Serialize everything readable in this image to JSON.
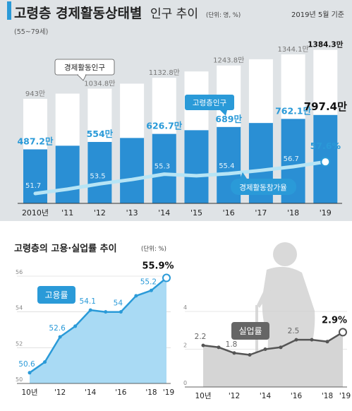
{
  "header": {
    "title": "고령층 경제활동상태별",
    "title2": "인구 추이",
    "unit": "(단위: 명, %)",
    "age_range": "(55~79세)",
    "date": "2019년 5월 기준"
  },
  "colors": {
    "top_bg": "#dfe3e6",
    "bar": "#2a8fd4",
    "bar_white": "#ffffff",
    "accent_blue": "#2a9ad8",
    "line_light": "#b6e4f5",
    "employment_fill": "#a9daf4",
    "unemployment_fill": "#d5d5d5",
    "dark": "#222222",
    "grid": "#cfcfcf"
  },
  "chart_data": [
    {
      "type": "bar",
      "categories": [
        "2010년",
        "'11",
        "'12",
        "'13",
        "'14",
        "'15",
        "'16",
        "'17",
        "'18",
        "'19"
      ],
      "series": [
        {
          "name": "경제활동인구",
          "values": [
            943,
            990,
            1034.8,
            1080,
            1132.8,
            1190,
            1243.8,
            1300,
            1344.1,
            1384.3
          ]
        },
        {
          "name": "고령층인구",
          "values": [
            487.2,
            520,
            554,
            590,
            626.7,
            660,
            689,
            725,
            762.1,
            797.4
          ]
        },
        {
          "name": "경제활동참가율",
          "values": [
            51.7,
            52.5,
            53.5,
            54.3,
            55.3,
            55.0,
            55.4,
            56.0,
            56.7,
            57.6
          ]
        }
      ],
      "total_labels": [
        "943만",
        "",
        "1034.8만",
        "",
        "1132.8만",
        "",
        "1243.8만",
        "",
        "1344.1만",
        "1384.3만"
      ],
      "part_labels": [
        "487.2만",
        "",
        "554만",
        "",
        "626.7만",
        "",
        "689만",
        "",
        "762.1만",
        "797.4만"
      ],
      "rate_labels": [
        "51.7",
        "",
        "53.5",
        "",
        "55.3",
        "",
        "55.4",
        "",
        "56.7",
        "57.6%"
      ],
      "callouts": {
        "total": "경제활동인구",
        "part": "고령층인구",
        "rate": "경제활동참가율"
      },
      "ylim": [
        0,
        1400
      ]
    },
    {
      "type": "area",
      "title": "고령층의 고용·실업률 추이",
      "unit": "(단위: %)",
      "series_label": "고용률",
      "x": [
        2010,
        2011,
        2012,
        2013,
        2014,
        2015,
        2016,
        2017,
        2018,
        2019
      ],
      "values": [
        50.6,
        51.2,
        52.6,
        53.2,
        54.1,
        54.0,
        54.0,
        54.9,
        55.2,
        55.9
      ],
      "point_labels": [
        "50.6",
        "",
        "52.6",
        "",
        "54.1",
        "",
        "54",
        "",
        "55.2",
        "55.9%"
      ],
      "x_tick_labels": [
        "10년",
        "'12",
        "'14",
        "'16",
        "'18",
        "'19"
      ],
      "y_ticks": [
        50,
        52,
        54,
        56
      ],
      "y_tick_labels": [
        "50",
        "52",
        "54",
        "56"
      ],
      "ylim": [
        50,
        56
      ]
    },
    {
      "type": "area",
      "series_label": "실업률",
      "x": [
        2010,
        2011,
        2012,
        2013,
        2014,
        2015,
        2016,
        2017,
        2018,
        2019
      ],
      "values": [
        2.2,
        2.1,
        1.8,
        1.7,
        2.0,
        2.1,
        2.5,
        2.5,
        2.4,
        2.9
      ],
      "point_labels": [
        "2.2",
        "",
        "1.8",
        "",
        "",
        "",
        "2.5",
        "",
        "",
        "2.9%"
      ],
      "x_tick_labels": [
        "10년",
        "'12",
        "'14",
        "'16",
        "'18",
        "'19"
      ],
      "y_ticks": [
        0,
        2,
        4
      ],
      "y_tick_labels": [
        "0",
        "2",
        "4"
      ],
      "ylim": [
        0,
        4
      ]
    }
  ]
}
